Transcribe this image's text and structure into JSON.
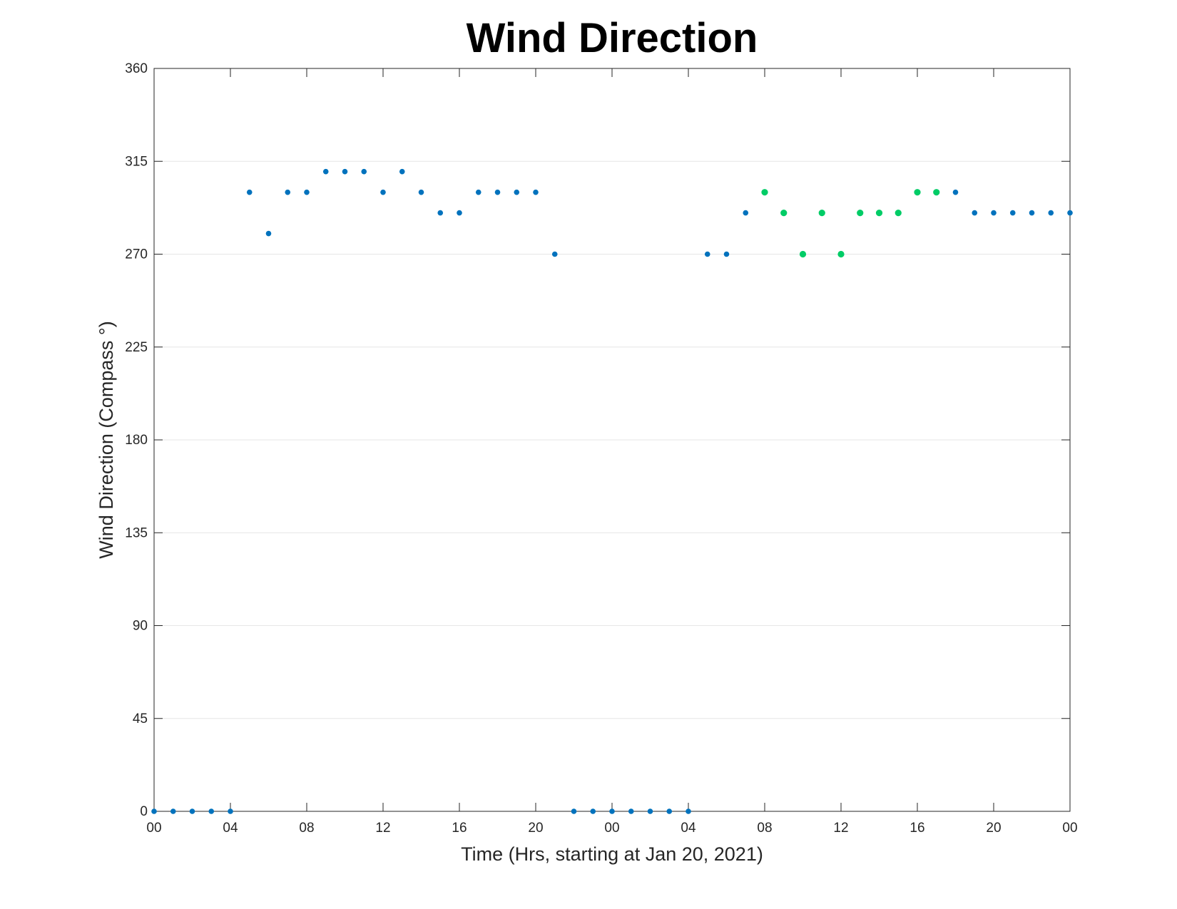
{
  "chart_data": {
    "type": "scatter",
    "title": "Wind Direction",
    "xlabel": "Time (Hrs, starting at Jan 20, 2021)",
    "ylabel": "Wind Direction (Compass °)",
    "xlim": [
      "2021-01-20 00:00",
      "2021-01-22 00:00"
    ],
    "ylim": [
      0,
      360
    ],
    "x_ticks": [
      "00",
      "04",
      "08",
      "12",
      "16",
      "20",
      "00",
      "04",
      "08",
      "12",
      "16",
      "20",
      "00"
    ],
    "y_ticks": [
      0,
      45,
      90,
      135,
      180,
      225,
      270,
      315,
      360
    ],
    "grid": "horizontal",
    "colors": {
      "primary": "#0072bd",
      "highlight": "#00cc66"
    },
    "series": [
      {
        "color": "#0072bd",
        "points": [
          [
            "2021-01-20 00:00",
            0
          ],
          [
            "2021-01-20 01:00",
            0
          ],
          [
            "2021-01-20 02:00",
            0
          ],
          [
            "2021-01-20 03:00",
            0
          ],
          [
            "2021-01-20 04:00",
            0
          ],
          [
            "2021-01-20 05:00",
            300
          ],
          [
            "2021-01-20 06:00",
            280
          ],
          [
            "2021-01-20 07:00",
            300
          ],
          [
            "2021-01-20 08:00",
            300
          ],
          [
            "2021-01-20 09:00",
            310
          ],
          [
            "2021-01-20 10:00",
            310
          ],
          [
            "2021-01-20 11:00",
            310
          ],
          [
            "2021-01-20 12:00",
            300
          ],
          [
            "2021-01-20 13:00",
            310
          ],
          [
            "2021-01-20 14:00",
            300
          ],
          [
            "2021-01-20 15:00",
            290
          ],
          [
            "2021-01-20 16:00",
            290
          ],
          [
            "2021-01-20 17:00",
            300
          ],
          [
            "2021-01-20 18:00",
            300
          ],
          [
            "2021-01-20 19:00",
            300
          ],
          [
            "2021-01-20 20:00",
            300
          ],
          [
            "2021-01-20 21:00",
            270
          ],
          [
            "2021-01-20 22:00",
            0
          ],
          [
            "2021-01-20 23:00",
            0
          ],
          [
            "2021-01-21 00:00",
            0
          ],
          [
            "2021-01-21 01:00",
            0
          ],
          [
            "2021-01-21 02:00",
            0
          ],
          [
            "2021-01-21 03:00",
            0
          ],
          [
            "2021-01-21 04:00",
            0
          ],
          [
            "2021-01-21 05:00",
            270
          ],
          [
            "2021-01-21 06:00",
            270
          ],
          [
            "2021-01-21 07:00",
            290
          ],
          [
            "2021-01-21 18:00",
            300
          ],
          [
            "2021-01-21 19:00",
            290
          ],
          [
            "2021-01-21 20:00",
            290
          ],
          [
            "2021-01-21 21:00",
            290
          ],
          [
            "2021-01-21 22:00",
            290
          ],
          [
            "2021-01-21 23:00",
            290
          ],
          [
            "2021-01-22 00:00",
            290
          ]
        ]
      },
      {
        "color": "#00cc66",
        "points": [
          [
            "2021-01-21 08:00",
            300
          ],
          [
            "2021-01-21 09:00",
            290
          ],
          [
            "2021-01-21 10:00",
            270
          ],
          [
            "2021-01-21 11:00",
            290
          ],
          [
            "2021-01-21 12:00",
            270
          ],
          [
            "2021-01-21 13:00",
            290
          ],
          [
            "2021-01-21 14:00",
            290
          ],
          [
            "2021-01-21 15:00",
            290
          ],
          [
            "2021-01-21 16:00",
            300
          ],
          [
            "2021-01-21 17:00",
            300
          ]
        ]
      }
    ]
  }
}
